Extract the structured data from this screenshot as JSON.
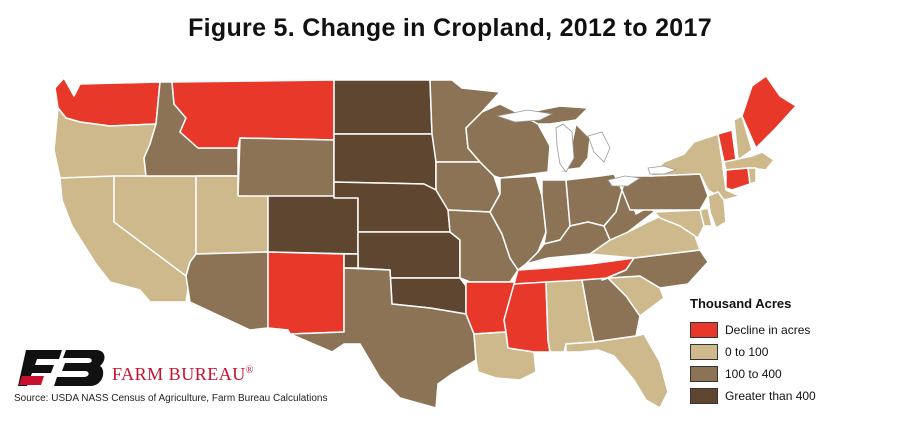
{
  "title": "Figure 5. Change in Cropland, 2012 to 2017",
  "legend": {
    "title": "Thousand Acres",
    "items": [
      {
        "label": "Decline in acres",
        "color": "#e8382a"
      },
      {
        "label": "0 to 100",
        "color": "#cdb98c"
      },
      {
        "label": "100 to 400",
        "color": "#8c7355"
      },
      {
        "label": "Greater than 400",
        "color": "#5e4630"
      }
    ]
  },
  "brand": {
    "name": "FARM BUREAU",
    "mark": "®",
    "logo_text": "FB"
  },
  "source": "Source: USDA NASS Census of Agriculture, Farm Bureau Calculations",
  "state_categories": {
    "WA": "decline",
    "OR": "low",
    "CA": "low",
    "NV": "low",
    "ID": "mid",
    "MT": "decline",
    "WY": "mid",
    "UT": "low",
    "AZ": "mid",
    "CO": "high",
    "NM": "decline",
    "ND": "high",
    "SD": "high",
    "NE": "high",
    "KS": "high",
    "OK": "high",
    "TX": "mid",
    "MN": "mid",
    "IA": "mid",
    "MO": "mid",
    "AR": "decline",
    "LA": "low",
    "WI": "mid",
    "IL": "mid",
    "MI": "mid",
    "IN": "mid",
    "OH": "mid",
    "KY": "mid",
    "TN": "decline",
    "MS": "decline",
    "AL": "low",
    "GA": "mid",
    "FL": "low",
    "SC": "low",
    "NC": "mid",
    "VA": "low",
    "WV": "mid",
    "PA": "mid",
    "NY": "low",
    "VT": "decline",
    "NH": "low",
    "ME": "decline",
    "MA": "low",
    "CT": "decline",
    "RI": "low",
    "NJ": "low",
    "DE": "low",
    "MD": "low"
  },
  "category_colors": {
    "decline": "#e8382a",
    "low": "#cdb98c",
    "mid": "#8c7355",
    "high": "#5e4630"
  }
}
